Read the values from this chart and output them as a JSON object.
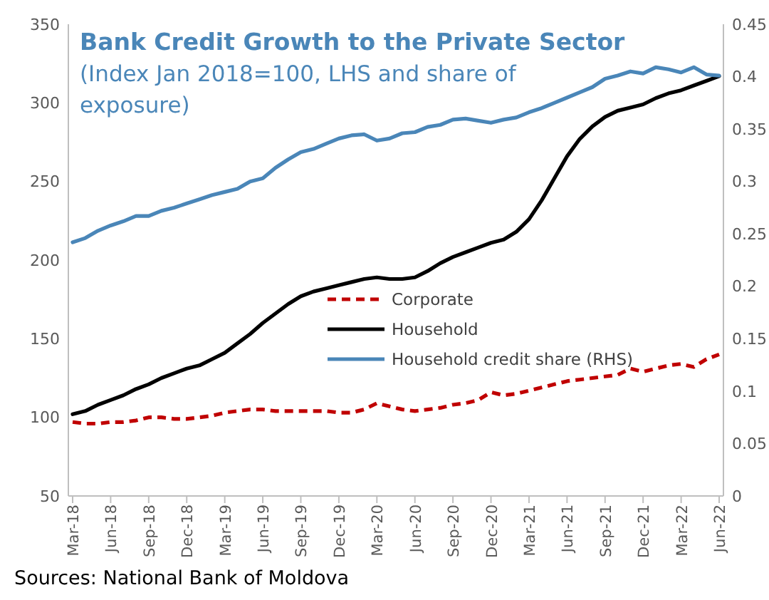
{
  "chart_data": {
    "type": "line",
    "title": "Bank Credit Growth to the Private Sector",
    "subtitle": "(Index Jan 2018=100,  LHS and share of exposure)",
    "categories": [
      "Mar-18",
      null,
      null,
      "Jun-18",
      null,
      null,
      "Sep-18",
      null,
      null,
      "Dec-18",
      null,
      null,
      "Mar-19",
      null,
      null,
      "Jun-19",
      null,
      null,
      "Sep-19",
      null,
      null,
      "Dec-19",
      null,
      null,
      "Mar-20",
      null,
      null,
      "Jun-20",
      null,
      null,
      "Sep-20",
      null,
      null,
      "Dec-20",
      null,
      null,
      "Mar-21",
      null,
      null,
      "Jun-21",
      null,
      null,
      "Sep-21",
      null,
      null,
      "Dec-21",
      null,
      null,
      "Mar-22",
      null,
      null,
      "Jun-22"
    ],
    "series": [
      {
        "name": "Corporate",
        "color": "#c00000",
        "line_style": "dashed",
        "values": [
          97,
          96,
          96,
          97,
          97,
          98,
          100,
          100,
          99,
          99,
          100,
          101,
          103,
          104,
          105,
          105,
          104,
          104,
          104,
          104,
          104,
          103,
          103,
          105,
          109,
          107,
          105,
          104,
          105,
          106,
          108,
          109,
          111,
          116,
          114,
          115,
          117,
          119,
          121,
          123,
          124,
          125,
          126,
          127,
          131,
          129,
          131,
          133,
          134,
          132,
          137,
          140
        ]
      },
      {
        "name": "Household",
        "color": "#000000",
        "line_style": "solid",
        "values": [
          102,
          104,
          108,
          111,
          114,
          118,
          121,
          125,
          128,
          131,
          133,
          137,
          141,
          147,
          153,
          160,
          166,
          172,
          177,
          180,
          182,
          184,
          186,
          188,
          189,
          188,
          188,
          189,
          193,
          198,
          202,
          205,
          208,
          211,
          213,
          218,
          226,
          238,
          252,
          266,
          277,
          285,
          291,
          295,
          297,
          299,
          303,
          306,
          308,
          311,
          314,
          317
        ]
      },
      {
        "name": "Household credit share (RHS)",
        "color": "#4a86b8",
        "line_style": "solid",
        "axis": "y2",
        "values": [
          0.242,
          0.246,
          0.253,
          0.258,
          0.262,
          0.267,
          0.267,
          0.272,
          0.275,
          0.279,
          0.283,
          0.287,
          0.29,
          0.293,
          0.3,
          0.303,
          0.313,
          0.321,
          0.328,
          0.331,
          0.336,
          0.341,
          0.344,
          0.345,
          0.339,
          0.341,
          0.346,
          0.347,
          0.352,
          0.354,
          0.359,
          0.36,
          0.358,
          0.356,
          0.359,
          0.361,
          0.366,
          0.37,
          0.375,
          0.38,
          0.385,
          0.39,
          0.398,
          0.401,
          0.405,
          0.403,
          0.409,
          0.407,
          0.404,
          0.409,
          0.402,
          0.401
        ]
      }
    ],
    "ylim": [
      50,
      350
    ],
    "yticks": [
      50,
      100,
      150,
      200,
      250,
      300,
      350
    ],
    "y2lim": [
      0,
      0.45
    ],
    "y2ticks": [
      0,
      0.05,
      0.1,
      0.15,
      0.2,
      0.25,
      0.3,
      0.35,
      0.4,
      0.45
    ],
    "grid": false,
    "legend": "center",
    "marker": "none",
    "annotations": [
      "Sources: National Bank of Moldova"
    ]
  }
}
